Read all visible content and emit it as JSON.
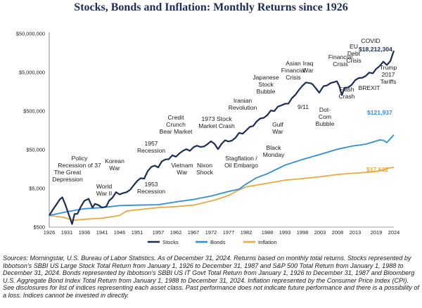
{
  "chart_data": {
    "type": "line",
    "title": "Stocks, Bonds and Inflation: Monthly Returns since 1926",
    "y_scale": "log",
    "ylim": [
      500,
      50000000
    ],
    "xlim": [
      1926,
      2024
    ],
    "y_tick_labels": [
      "$500",
      "$5,000",
      "$50,000",
      "$500,000",
      "$5,000,000",
      "$50,000,000"
    ],
    "y_tick_values": [
      500,
      5000,
      50000,
      500000,
      5000000,
      50000000
    ],
    "x_tick_labels": [
      "1926",
      "1931",
      "1936",
      "1941",
      "1946",
      "1951",
      "1957",
      "1962",
      "1967",
      "1972",
      "1977",
      "1982",
      "1988",
      "1993",
      "1998",
      "2003",
      "2008",
      "2013",
      "2019",
      "2024"
    ],
    "legend_position": "bottom-center",
    "series": [
      {
        "name": "Stocks",
        "color": "#1b2d5b",
        "end_label": "$18,212,304",
        "points": [
          [
            1926,
            1000
          ],
          [
            1927,
            1400
          ],
          [
            1928,
            1900
          ],
          [
            1929,
            2600
          ],
          [
            1929.7,
            2950
          ],
          [
            1930.5,
            2000
          ],
          [
            1931.5,
            1100
          ],
          [
            1932.5,
            600
          ],
          [
            1933.2,
            1100
          ],
          [
            1934,
            1100
          ],
          [
            1935,
            1700
          ],
          [
            1936,
            2400
          ],
          [
            1937.2,
            2700
          ],
          [
            1938.3,
            1600
          ],
          [
            1939,
            2000
          ],
          [
            1940,
            1850
          ],
          [
            1941,
            1600
          ],
          [
            1942.2,
            1700
          ],
          [
            1943,
            2400
          ],
          [
            1944,
            2900
          ],
          [
            1945,
            4000
          ],
          [
            1946,
            3500
          ],
          [
            1947,
            3800
          ],
          [
            1948,
            4000
          ],
          [
            1949,
            4600
          ],
          [
            1950,
            6000
          ],
          [
            1951,
            7800
          ],
          [
            1952,
            9200
          ],
          [
            1953,
            9000
          ],
          [
            1954,
            14000
          ],
          [
            1955,
            18000
          ],
          [
            1956,
            19500
          ],
          [
            1957,
            17500
          ],
          [
            1958,
            25000
          ],
          [
            1959,
            28000
          ],
          [
            1960,
            28500
          ],
          [
            1961,
            36000
          ],
          [
            1962,
            33000
          ],
          [
            1963,
            40000
          ],
          [
            1964,
            47000
          ],
          [
            1965,
            52000
          ],
          [
            1966,
            47000
          ],
          [
            1967,
            58000
          ],
          [
            1968,
            64000
          ],
          [
            1969,
            59000
          ],
          [
            1970,
            61000
          ],
          [
            1971,
            70000
          ],
          [
            1972,
            83000
          ],
          [
            1973,
            71000
          ],
          [
            1974,
            52000
          ],
          [
            1975,
            71000
          ],
          [
            1976,
            88000
          ],
          [
            1977,
            82000
          ],
          [
            1978,
            87000
          ],
          [
            1979,
            103000
          ],
          [
            1980,
            137000
          ],
          [
            1981,
            130000
          ],
          [
            1982,
            158000
          ],
          [
            1983,
            194000
          ],
          [
            1984,
            206000
          ],
          [
            1985,
            271000
          ],
          [
            1986,
            322000
          ],
          [
            1987,
            335000
          ],
          [
            1988,
            392000
          ],
          [
            1989,
            516000
          ],
          [
            1990,
            500000
          ],
          [
            1991,
            652000
          ],
          [
            1992,
            702000
          ],
          [
            1993,
            772000
          ],
          [
            1994,
            782000
          ],
          [
            1995,
            1075000
          ],
          [
            1996,
            1322000
          ],
          [
            1997,
            1763000
          ],
          [
            1998,
            2267000
          ],
          [
            1999,
            2744000
          ],
          [
            2000.5,
            2600000
          ],
          [
            2001,
            2400000
          ],
          [
            2002.8,
            1500000
          ],
          [
            2003.5,
            1900000
          ],
          [
            2004,
            2200000
          ],
          [
            2005,
            2300000
          ],
          [
            2006,
            2650000
          ],
          [
            2007.8,
            2950000
          ],
          [
            2008.5,
            2200000
          ],
          [
            2009.2,
            1300000
          ],
          [
            2010,
            2000000
          ],
          [
            2011,
            2050000
          ],
          [
            2012,
            2380000
          ],
          [
            2013,
            3150000
          ],
          [
            2014,
            3580000
          ],
          [
            2015,
            3630000
          ],
          [
            2016,
            4060000
          ],
          [
            2017,
            4950000
          ],
          [
            2018,
            4730000
          ],
          [
            2019,
            6220000
          ],
          [
            2020,
            7360000
          ],
          [
            2021,
            9480000
          ],
          [
            2022,
            7760000
          ],
          [
            2023,
            9800000
          ],
          [
            2024,
            18212304
          ]
        ]
      },
      {
        "name": "Bonds",
        "color": "#2e8fd8",
        "end_label": "$121,937",
        "points": [
          [
            1926,
            1000
          ],
          [
            1931,
            1250
          ],
          [
            1936,
            1500
          ],
          [
            1941,
            1600
          ],
          [
            1946,
            1800
          ],
          [
            1951,
            1850
          ],
          [
            1957,
            1900
          ],
          [
            1962,
            2250
          ],
          [
            1967,
            2600
          ],
          [
            1972,
            3200
          ],
          [
            1977,
            4200
          ],
          [
            1980,
            4800
          ],
          [
            1982,
            6500
          ],
          [
            1985,
            9500
          ],
          [
            1988,
            12000
          ],
          [
            1993,
            20000
          ],
          [
            1998,
            28000
          ],
          [
            2003,
            38000
          ],
          [
            2008,
            52000
          ],
          [
            2012,
            62000
          ],
          [
            2016,
            70000
          ],
          [
            2020,
            90000
          ],
          [
            2021,
            88000
          ],
          [
            2022,
            77000
          ],
          [
            2024,
            121937
          ]
        ]
      },
      {
        "name": "Inflation",
        "color": "#e8ab3e",
        "end_label": "$17,632",
        "points": [
          [
            1926,
            1000
          ],
          [
            1930,
            900
          ],
          [
            1933,
            750
          ],
          [
            1936,
            800
          ],
          [
            1941,
            850
          ],
          [
            1946,
            1000
          ],
          [
            1948,
            1300
          ],
          [
            1951,
            1400
          ],
          [
            1957,
            1600
          ],
          [
            1962,
            1700
          ],
          [
            1967,
            1850
          ],
          [
            1970,
            2150
          ],
          [
            1973,
            2500
          ],
          [
            1977,
            3300
          ],
          [
            1980,
            4600
          ],
          [
            1982,
            5500
          ],
          [
            1988,
            6800
          ],
          [
            1993,
            8200
          ],
          [
            1998,
            9000
          ],
          [
            2003,
            10000
          ],
          [
            2008,
            11500
          ],
          [
            2013,
            12500
          ],
          [
            2016,
            13000
          ],
          [
            2019,
            13800
          ],
          [
            2021,
            15000
          ],
          [
            2022,
            16500
          ],
          [
            2024,
            17632
          ]
        ]
      }
    ],
    "annotations": [
      {
        "lines": [
          "The Great",
          "Depression"
        ]
      },
      {
        "lines": [
          "Policy",
          "Recession of 37"
        ]
      },
      {
        "lines": [
          "World",
          "War II"
        ]
      },
      {
        "lines": [
          "Korean",
          "War"
        ]
      },
      {
        "lines": [
          "1957",
          "Recession"
        ]
      },
      {
        "lines": [
          "1953",
          "Recession"
        ]
      },
      {
        "lines": [
          "Credit",
          "Crunch",
          "Bear Market"
        ]
      },
      {
        "lines": [
          "Vietnam",
          "War"
        ]
      },
      {
        "lines": [
          "1973 Stock",
          "Market Crash"
        ]
      },
      {
        "lines": [
          "Nixon",
          "Shock"
        ]
      },
      {
        "lines": [
          "Iranian",
          "Revolution"
        ]
      },
      {
        "lines": [
          "Stagflation /",
          "Oil Embargo"
        ]
      },
      {
        "lines": [
          "Japanese",
          "Stock",
          "Bubble"
        ]
      },
      {
        "lines": [
          "Gulf",
          "War"
        ]
      },
      {
        "lines": [
          "Black",
          "Monday"
        ]
      },
      {
        "lines": [
          "Asian",
          "Financial",
          "Crisis"
        ]
      },
      {
        "lines": [
          "Iraq",
          "War"
        ]
      },
      {
        "lines": [
          "9/11"
        ]
      },
      {
        "lines": [
          "Dot-",
          "Com",
          "Bubble"
        ]
      },
      {
        "lines": [
          "Financial",
          "Crisis"
        ]
      },
      {
        "lines": [
          "Flash",
          "Crash"
        ]
      },
      {
        "lines": [
          "EU",
          "Debt",
          "Crisis"
        ]
      },
      {
        "lines": [
          "COVID"
        ]
      },
      {
        "lines": [
          "BREXIT"
        ]
      },
      {
        "lines": [
          "Trump",
          "2017",
          "Tariffs"
        ]
      }
    ]
  },
  "footnote": {
    "p1": "Sources: Morningstar, U.S. Bureau of Labor Statistics. As of December 31, 2024. Returns based on monthly total returns. Stocks represented by Ibbotson's SBBI US Large Stock Total Return from January 1, 1926 to December 31, 1987 and S&P 500 Total Return from January 1, 1988 to December 31, 2024. Bonds represented by Ibbotson's SBBI US IT Govt Total Return from January 1, 1926 to December 31, 1987 and Bloomberg U.S. Aggregate Bond Index Total Return from January 1, 1988 to December 31, 2024. Inflation represented by the Consumer Price Index (CPI).",
    "p2": "See disclosures for list of indices representing each asset class. Past performance does not indicate future performance and there is a possibility of a loss. Indices cannot be invested in directly."
  }
}
